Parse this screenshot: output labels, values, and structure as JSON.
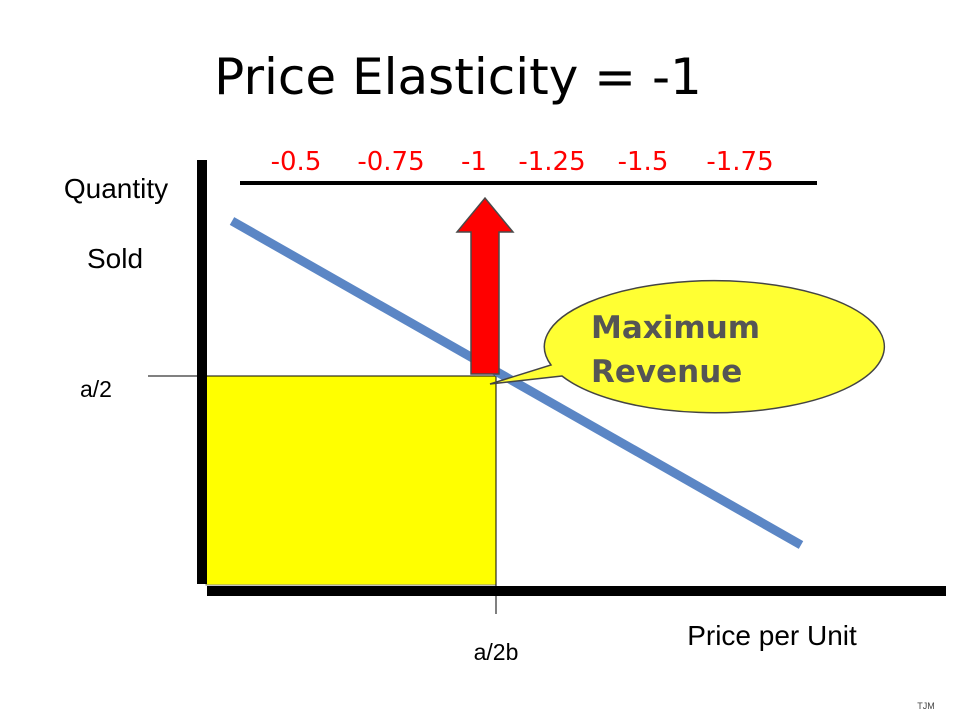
{
  "title": "Price Elasticity = -1",
  "elasticity_scale": {
    "values": [
      "-0.5",
      "-0.75",
      "-1",
      "-1.25",
      "-1.5",
      "-1.75"
    ],
    "color": "#ff0000"
  },
  "axes": {
    "y_label_line1": "Quantity",
    "y_label_line2": "Sold",
    "x_label": "Price per Unit",
    "y_tick": "a/2",
    "x_tick": "a/2b"
  },
  "callout": {
    "line1": "Maximum",
    "line2": "Revenue",
    "fill_color": "#ffff33"
  },
  "colors": {
    "demand_line": "#5b86c5",
    "revenue_area": "#ffff00",
    "arrow": "#ff0000"
  },
  "footer": {
    "initials": "TJM"
  }
}
